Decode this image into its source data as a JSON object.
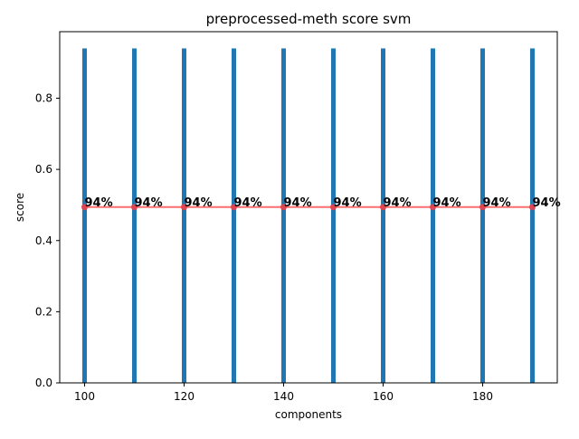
{
  "chart_data": {
    "type": "bar",
    "title": "preprocessed-meth score svm",
    "xlabel": "components",
    "ylabel": "score",
    "x": [
      100,
      110,
      120,
      130,
      140,
      150,
      160,
      170,
      180,
      190
    ],
    "series": [
      {
        "type": "bar",
        "values": [
          0.94,
          0.94,
          0.94,
          0.94,
          0.94,
          0.94,
          0.94,
          0.94,
          0.94,
          0.94
        ]
      },
      {
        "type": "line",
        "values": [
          0.494,
          0.494,
          0.494,
          0.494,
          0.494,
          0.494,
          0.494,
          0.494,
          0.494,
          0.494
        ]
      }
    ],
    "data_labels": [
      "94%",
      "94%",
      "94%",
      "94%",
      "94%",
      "94%",
      "94%",
      "94%",
      "94%",
      "94%"
    ],
    "xlim": [
      95,
      195
    ],
    "ylim": [
      0,
      0.987
    ],
    "xticks": [
      100,
      120,
      140,
      160,
      180
    ],
    "yticks": [
      0.0,
      0.2,
      0.4,
      0.6,
      0.8
    ],
    "xtick_labels": [
      "100",
      "120",
      "140",
      "160",
      "180"
    ],
    "ytick_labels": [
      "0.0",
      "0.2",
      "0.4",
      "0.6",
      "0.8"
    ],
    "grid": false,
    "legend": "none",
    "colors": {
      "bar": "#1f77b4",
      "line": "#ff5555",
      "marker": "#e8424d"
    }
  }
}
